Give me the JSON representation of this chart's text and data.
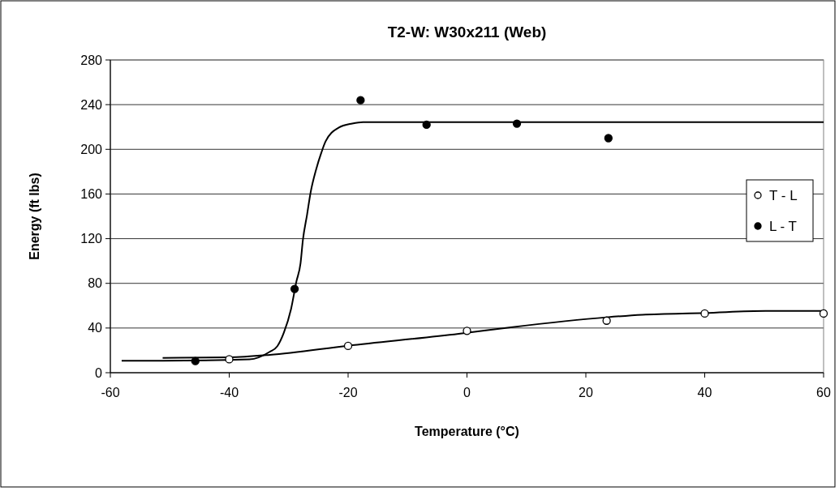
{
  "chart_data": {
    "type": "scatter",
    "title": "T2-W:  W30x211 (Web)",
    "xlabel": "Temperature (°C)",
    "ylabel": "Energy (ft lbs)",
    "xlim": [
      -60,
      60
    ],
    "xticks": [
      -60,
      -40,
      -20,
      0,
      20,
      40,
      60
    ],
    "ylim": [
      0,
      280
    ],
    "yticks": [
      0,
      40,
      80,
      120,
      160,
      200,
      240,
      280
    ],
    "grid": "y",
    "legend": "right",
    "marker": "circle",
    "series": [
      {
        "name": "T - L",
        "color": "#ffffff",
        "x": [
          -40,
          -20,
          0,
          23.5,
          40,
          60
        ],
        "values": [
          12,
          24,
          37.5,
          46.6,
          53,
          53
        ]
      },
      {
        "name": "L - T",
        "color": "#000000",
        "x": [
          -45.7,
          -29,
          -17.9,
          -6.8,
          8.4,
          23.8
        ],
        "values": [
          10.4,
          75,
          244,
          222,
          223,
          210
        ]
      },
      {
        "type": "line",
        "color": "#000000",
        "marker": "none",
        "x": [
          -51.2,
          -40,
          -33.2,
          -20,
          -1.4,
          7.1,
          23.5,
          29.5,
          40,
          50.2,
          60
        ],
        "values": [
          13.3,
          13.8,
          16,
          24.2,
          34.9,
          40.5,
          49.6,
          51.9,
          53.5,
          55.3,
          55.3
        ]
      },
      {
        "type": "line",
        "color": "#000000",
        "marker": "none",
        "x": [
          -58.1,
          -51.2,
          -36.6,
          -33.2,
          -31.9,
          -30.8,
          -29.6,
          -28.7,
          -28,
          -27.6,
          -26.9,
          -26.3,
          -25.4,
          -24.5,
          -23.8,
          -21.6,
          -19.3,
          -17.5,
          60
        ],
        "values": [
          10.7,
          10.7,
          12,
          18.7,
          23.8,
          36,
          57,
          81.6,
          98,
          119,
          141.6,
          161.6,
          181.6,
          197,
          207,
          219.3,
          223.1,
          224.4,
          224.4
        ]
      }
    ]
  }
}
